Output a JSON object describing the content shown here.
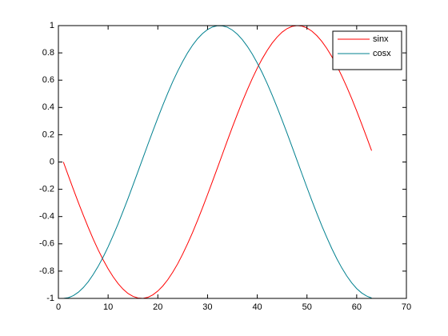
{
  "chart_data": {
    "type": "line",
    "x": [
      1,
      2,
      3,
      4,
      5,
      6,
      7,
      8,
      9,
      10,
      11,
      12,
      13,
      14,
      15,
      16,
      17,
      18,
      19,
      20,
      21,
      22,
      23,
      24,
      25,
      26,
      27,
      28,
      29,
      30,
      31,
      32,
      33,
      34,
      35,
      36,
      37,
      38,
      39,
      40,
      41,
      42,
      43,
      44,
      45,
      46,
      47,
      48,
      49,
      50,
      51,
      52,
      53,
      54,
      55,
      56,
      57,
      58,
      59,
      60,
      61,
      62,
      63
    ],
    "series": [
      {
        "name": "sinx",
        "color": "#ff0000",
        "values": [
          0,
          -0.1,
          -0.199,
          -0.296,
          -0.389,
          -0.479,
          -0.565,
          -0.644,
          -0.717,
          -0.783,
          -0.841,
          -0.891,
          -0.932,
          -0.964,
          -0.985,
          -0.997,
          -1.0,
          -0.992,
          -0.974,
          -0.946,
          -0.909,
          -0.863,
          -0.808,
          -0.746,
          -0.675,
          -0.598,
          -0.516,
          -0.427,
          -0.335,
          -0.239,
          -0.141,
          -0.042,
          0.058,
          0.158,
          0.256,
          0.351,
          0.443,
          0.53,
          0.612,
          0.688,
          0.757,
          0.818,
          0.872,
          0.916,
          0.952,
          0.978,
          0.994,
          1.0,
          0.996,
          0.983,
          0.959,
          0.926,
          0.884,
          0.832,
          0.773,
          0.706,
          0.631,
          0.551,
          0.465,
          0.374,
          0.279,
          0.182,
          0.083
        ]
      },
      {
        "name": "cosx",
        "color": "#00808f",
        "values": [
          -1,
          -0.995,
          -0.98,
          -0.955,
          -0.921,
          -0.878,
          -0.825,
          -0.765,
          -0.697,
          -0.622,
          -0.54,
          -0.454,
          -0.362,
          -0.268,
          -0.17,
          -0.071,
          0.029,
          0.129,
          0.227,
          0.323,
          0.416,
          0.505,
          0.589,
          0.666,
          0.737,
          0.801,
          0.857,
          0.904,
          0.942,
          0.971,
          0.99,
          0.999,
          0.998,
          0.988,
          0.967,
          0.937,
          0.897,
          0.848,
          0.791,
          0.726,
          0.654,
          0.575,
          0.49,
          0.401,
          0.307,
          0.211,
          0.112,
          0.012,
          -0.088,
          -0.187,
          -0.284,
          -0.378,
          -0.469,
          -0.554,
          -0.635,
          -0.709,
          -0.776,
          -0.835,
          -0.886,
          -0.928,
          -0.96,
          -0.983,
          -0.997
        ]
      }
    ],
    "xlim": [
      0,
      70
    ],
    "xticks": [
      0,
      10,
      20,
      30,
      40,
      50,
      60,
      70
    ],
    "ylim": [
      -1,
      1
    ],
    "yticks": [
      -1,
      -0.8,
      -0.6,
      -0.4,
      -0.2,
      0,
      0.2,
      0.4,
      0.6,
      0.8,
      1
    ],
    "legend": "northeast"
  }
}
